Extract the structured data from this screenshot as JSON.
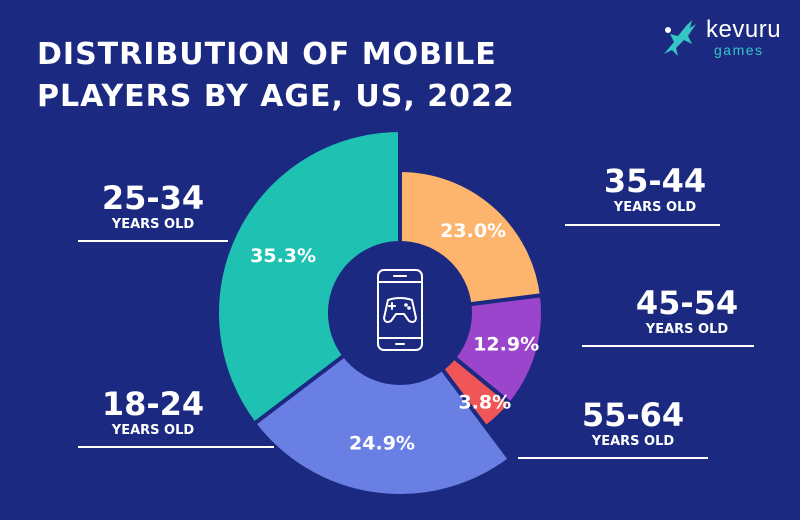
{
  "title": {
    "line1": "DISTRIBUTION OF MOBILE",
    "line2": "PLAYERS BY AGE, US, 2022"
  },
  "brand": {
    "name": "kevuru",
    "sub": "games",
    "icon": "gazelle-logo-icon"
  },
  "center_icon": "smartphone-gamepad-icon",
  "colors": {
    "background": "#1b2a80",
    "accent_teal": "#36c5c5"
  },
  "chart_data": {
    "type": "pie",
    "variant": "donut",
    "start": "12 o'clock, clockwise",
    "slices": [
      {
        "label": "35-44",
        "sublabel": "YEARS OLD",
        "value": 23.0,
        "display": "23.0%",
        "color": "#fdb46c"
      },
      {
        "label": "45-54",
        "sublabel": "YEARS OLD",
        "value": 12.9,
        "display": "12.9%",
        "color": "#9b44cc"
      },
      {
        "label": "55-64",
        "sublabel": "YEARS OLD",
        "value": 3.8,
        "display": "3.8%",
        "color": "#f05658"
      },
      {
        "label": "18-24",
        "sublabel": "YEARS OLD",
        "value": 24.9,
        "display": "24.9%",
        "color": "#6a7fe4"
      },
      {
        "label": "25-34",
        "sublabel": "YEARS OLD",
        "value": 35.3,
        "display": "35.3%",
        "color": "#1fc1b2"
      }
    ]
  }
}
